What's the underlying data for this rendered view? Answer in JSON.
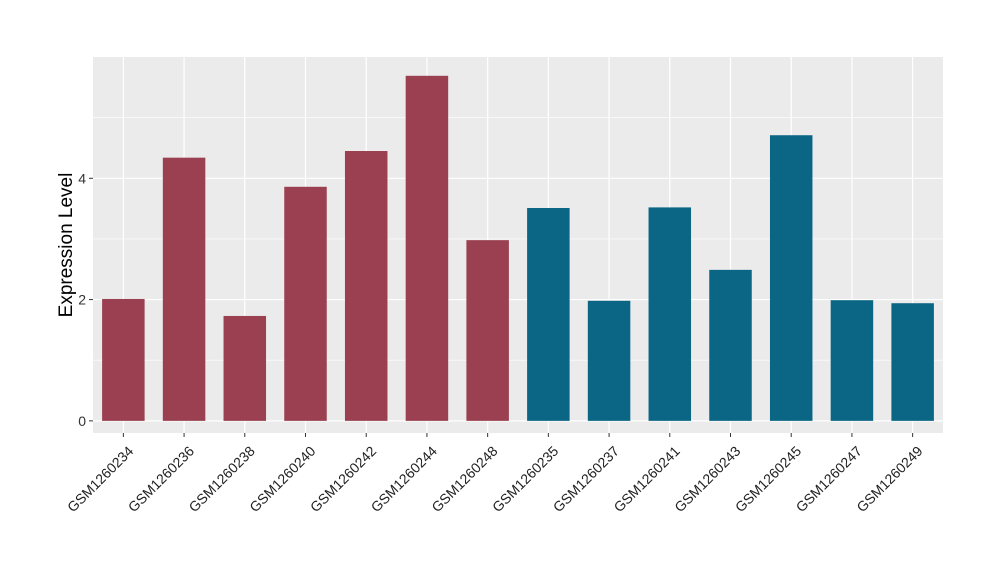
{
  "chart_data": {
    "type": "bar",
    "title": "",
    "xlabel": "",
    "ylabel": "Expression Level",
    "ylim": [
      -0.2,
      6.0
    ],
    "yticks": [
      0,
      2,
      4
    ],
    "grid": true,
    "legend": "none",
    "categories": [
      "GSM1260234",
      "GSM1260236",
      "GSM1260238",
      "GSM1260240",
      "GSM1260242",
      "GSM1260244",
      "GSM1260248",
      "GSM1260235",
      "GSM1260237",
      "GSM1260241",
      "GSM1260243",
      "GSM1260245",
      "GSM1260247",
      "GSM1260249"
    ],
    "values": [
      2.01,
      4.34,
      1.73,
      3.86,
      4.45,
      5.69,
      2.98,
      3.51,
      1.98,
      3.52,
      2.49,
      4.71,
      1.99,
      1.94
    ],
    "bar_colors": [
      "#9A4050",
      "#9A4050",
      "#9A4050",
      "#9A4050",
      "#9A4050",
      "#9A4050",
      "#9A4050",
      "#0B6685",
      "#0B6685",
      "#0B6685",
      "#0B6685",
      "#0B6685",
      "#0B6685",
      "#0B6685"
    ],
    "panel_background": "#EBEBEB",
    "grid_color": "#FFFFFF"
  }
}
